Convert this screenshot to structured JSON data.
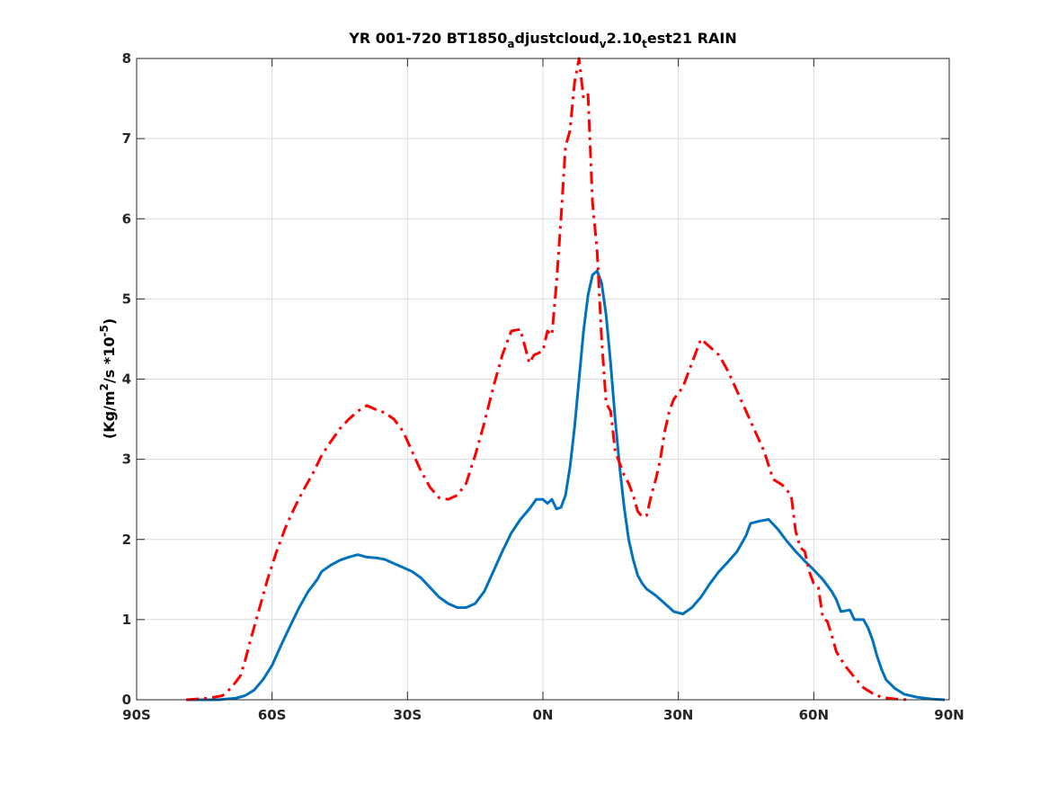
{
  "chart_data": {
    "type": "line",
    "title": {
      "parts": [
        {
          "text": "YR 001-720 BT1850",
          "sub": false
        },
        {
          "text": "a",
          "sub": true
        },
        {
          "text": "djustcloud",
          "sub": false
        },
        {
          "text": "v",
          "sub": true
        },
        {
          "text": "2.10",
          "sub": false
        },
        {
          "text": "t",
          "sub": true
        },
        {
          "text": "est21 RAIN",
          "sub": false
        }
      ]
    },
    "ylabel": {
      "pre": "(Kg/m",
      "sup1": "2",
      "mid": "/s   *10",
      "sup2": "-5",
      "post": ")"
    },
    "xlabel": "",
    "xlim": [
      -90,
      90
    ],
    "ylim": [
      0,
      8
    ],
    "xticks": [
      {
        "value": -90,
        "label": "90S"
      },
      {
        "value": -60,
        "label": "60S"
      },
      {
        "value": -30,
        "label": "30S"
      },
      {
        "value": 0,
        "label": "0N"
      },
      {
        "value": 30,
        "label": "30N"
      },
      {
        "value": 60,
        "label": "60N"
      },
      {
        "value": 90,
        "label": "90N"
      }
    ],
    "yticks": [
      {
        "value": 0,
        "label": "0"
      },
      {
        "value": 1,
        "label": "1"
      },
      {
        "value": 2,
        "label": "2"
      },
      {
        "value": 3,
        "label": "3"
      },
      {
        "value": 4,
        "label": "4"
      },
      {
        "value": 5,
        "label": "5"
      },
      {
        "value": 6,
        "label": "6"
      },
      {
        "value": 7,
        "label": "7"
      },
      {
        "value": 8,
        "label": "8"
      }
    ],
    "grid": true,
    "series": [
      {
        "color": "#0072bd",
        "style": "solid",
        "points": [
          [
            -79,
            0.0
          ],
          [
            -72,
            0.0
          ],
          [
            -68,
            0.02
          ],
          [
            -66,
            0.05
          ],
          [
            -64,
            0.12
          ],
          [
            -62,
            0.25
          ],
          [
            -60,
            0.43
          ],
          [
            -58,
            0.68
          ],
          [
            -56,
            0.92
          ],
          [
            -54,
            1.15
          ],
          [
            -52,
            1.35
          ],
          [
            -50,
            1.5
          ],
          [
            -49,
            1.6
          ],
          [
            -47,
            1.68
          ],
          [
            -45,
            1.74
          ],
          [
            -43,
            1.78
          ],
          [
            -41,
            1.81
          ],
          [
            -39,
            1.78
          ],
          [
            -37,
            1.77
          ],
          [
            -35,
            1.75
          ],
          [
            -33,
            1.7
          ],
          [
            -31,
            1.65
          ],
          [
            -29,
            1.6
          ],
          [
            -27,
            1.52
          ],
          [
            -25,
            1.4
          ],
          [
            -23,
            1.28
          ],
          [
            -21,
            1.2
          ],
          [
            -19,
            1.15
          ],
          [
            -17,
            1.15
          ],
          [
            -15,
            1.2
          ],
          [
            -13,
            1.35
          ],
          [
            -11,
            1.6
          ],
          [
            -9,
            1.85
          ],
          [
            -7,
            2.08
          ],
          [
            -5,
            2.25
          ],
          [
            -3,
            2.38
          ],
          [
            -1.5,
            2.5
          ],
          [
            0,
            2.5
          ],
          [
            1,
            2.45
          ],
          [
            2,
            2.5
          ],
          [
            3,
            2.38
          ],
          [
            4,
            2.4
          ],
          [
            5,
            2.55
          ],
          [
            6,
            2.9
          ],
          [
            7,
            3.4
          ],
          [
            8,
            4.0
          ],
          [
            9,
            4.6
          ],
          [
            10,
            5.05
          ],
          [
            11,
            5.3
          ],
          [
            12,
            5.35
          ],
          [
            13,
            5.2
          ],
          [
            14,
            4.8
          ],
          [
            15,
            4.2
          ],
          [
            16,
            3.5
          ],
          [
            17,
            2.9
          ],
          [
            18,
            2.4
          ],
          [
            19,
            2.0
          ],
          [
            20,
            1.75
          ],
          [
            21,
            1.55
          ],
          [
            22,
            1.45
          ],
          [
            23,
            1.38
          ],
          [
            25,
            1.3
          ],
          [
            27,
            1.2
          ],
          [
            29,
            1.1
          ],
          [
            31,
            1.07
          ],
          [
            33,
            1.15
          ],
          [
            35,
            1.28
          ],
          [
            37,
            1.45
          ],
          [
            39,
            1.6
          ],
          [
            41,
            1.72
          ],
          [
            43,
            1.85
          ],
          [
            45,
            2.05
          ],
          [
            46,
            2.2
          ],
          [
            48,
            2.23
          ],
          [
            50,
            2.25
          ],
          [
            52,
            2.13
          ],
          [
            54,
            1.98
          ],
          [
            56,
            1.85
          ],
          [
            58,
            1.73
          ],
          [
            60,
            1.62
          ],
          [
            62,
            1.5
          ],
          [
            64,
            1.35
          ],
          [
            65,
            1.25
          ],
          [
            66,
            1.1
          ],
          [
            68,
            1.12
          ],
          [
            69,
            1.0
          ],
          [
            71,
            1.0
          ],
          [
            72,
            0.9
          ],
          [
            73,
            0.75
          ],
          [
            74,
            0.55
          ],
          [
            75,
            0.38
          ],
          [
            76,
            0.25
          ],
          [
            78,
            0.14
          ],
          [
            80,
            0.07
          ],
          [
            83,
            0.03
          ],
          [
            86,
            0.01
          ],
          [
            89,
            0.0
          ]
        ]
      },
      {
        "color": "#ff0000",
        "style": "dashdot",
        "points": [
          [
            -79,
            0.0
          ],
          [
            -74,
            0.02
          ],
          [
            -71,
            0.05
          ],
          [
            -69,
            0.15
          ],
          [
            -67,
            0.3
          ],
          [
            -66,
            0.48
          ],
          [
            -65,
            0.7
          ],
          [
            -63,
            1.1
          ],
          [
            -61,
            1.5
          ],
          [
            -59,
            1.85
          ],
          [
            -57,
            2.15
          ],
          [
            -55,
            2.4
          ],
          [
            -53,
            2.62
          ],
          [
            -51,
            2.82
          ],
          [
            -49,
            3.05
          ],
          [
            -47,
            3.22
          ],
          [
            -45,
            3.38
          ],
          [
            -43,
            3.5
          ],
          [
            -41,
            3.6
          ],
          [
            -39,
            3.67
          ],
          [
            -37,
            3.62
          ],
          [
            -35,
            3.58
          ],
          [
            -33,
            3.5
          ],
          [
            -31,
            3.35
          ],
          [
            -29,
            3.1
          ],
          [
            -27,
            2.85
          ],
          [
            -25,
            2.65
          ],
          [
            -23,
            2.52
          ],
          [
            -21,
            2.5
          ],
          [
            -19,
            2.55
          ],
          [
            -17,
            2.7
          ],
          [
            -15,
            3.05
          ],
          [
            -13,
            3.45
          ],
          [
            -11,
            3.9
          ],
          [
            -9,
            4.3
          ],
          [
            -7,
            4.6
          ],
          [
            -5,
            4.62
          ],
          [
            -3,
            4.2
          ],
          [
            -2,
            4.3
          ],
          [
            0,
            4.35
          ],
          [
            1,
            4.6
          ],
          [
            2,
            4.55
          ],
          [
            3,
            5.2
          ],
          [
            4,
            6.0
          ],
          [
            5,
            6.9
          ],
          [
            6,
            7.1
          ],
          [
            7,
            7.7
          ],
          [
            8,
            8.0
          ],
          [
            9,
            7.5
          ],
          [
            10,
            7.55
          ],
          [
            11,
            6.2
          ],
          [
            12,
            5.6
          ],
          [
            13,
            4.5
          ],
          [
            14,
            3.7
          ],
          [
            15,
            3.6
          ],
          [
            16,
            3.1
          ],
          [
            17,
            2.95
          ],
          [
            18,
            2.8
          ],
          [
            19,
            2.7
          ],
          [
            20,
            2.55
          ],
          [
            21,
            2.35
          ],
          [
            22,
            2.28
          ],
          [
            23,
            2.3
          ],
          [
            24,
            2.55
          ],
          [
            25,
            2.75
          ],
          [
            26,
            3.0
          ],
          [
            27,
            3.35
          ],
          [
            28,
            3.6
          ],
          [
            29,
            3.75
          ],
          [
            31,
            3.9
          ],
          [
            33,
            4.2
          ],
          [
            35,
            4.5
          ],
          [
            36,
            4.45
          ],
          [
            37,
            4.4
          ],
          [
            39,
            4.3
          ],
          [
            41,
            4.1
          ],
          [
            43,
            3.85
          ],
          [
            45,
            3.6
          ],
          [
            47,
            3.35
          ],
          [
            49,
            3.1
          ],
          [
            51,
            2.75
          ],
          [
            53,
            2.68
          ],
          [
            55,
            2.55
          ],
          [
            56,
            2.1
          ],
          [
            57,
            1.9
          ],
          [
            58,
            1.85
          ],
          [
            59,
            1.6
          ],
          [
            60,
            1.45
          ],
          [
            61,
            1.4
          ],
          [
            62,
            1.02
          ],
          [
            63,
            0.98
          ],
          [
            64,
            0.8
          ],
          [
            65,
            0.6
          ],
          [
            67,
            0.42
          ],
          [
            69,
            0.28
          ],
          [
            71,
            0.15
          ],
          [
            73,
            0.08
          ],
          [
            75,
            0.03
          ],
          [
            78,
            0.01
          ],
          [
            81,
            0.0
          ]
        ]
      }
    ]
  }
}
